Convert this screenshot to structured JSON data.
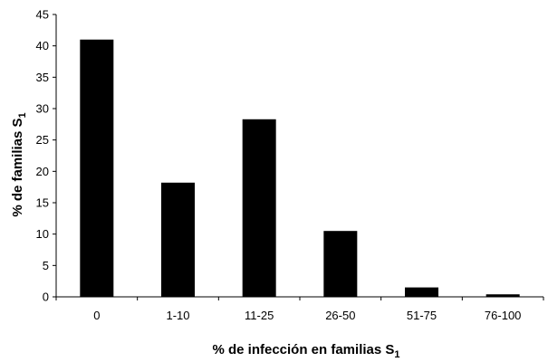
{
  "chart_data": {
    "type": "bar",
    "categories": [
      "0",
      "1-10",
      "11-25",
      "26-50",
      "51-75",
      "76-100"
    ],
    "values": [
      41,
      18.2,
      28.3,
      10.5,
      1.5,
      0.4
    ],
    "xlabel": "% de infección en familias S",
    "xlabel_subscript": "1",
    "ylabel": "% de familias S",
    "ylabel_subscript": "1",
    "ylim": [
      0,
      45
    ],
    "yticks": [
      0,
      5,
      10,
      15,
      20,
      25,
      30,
      35,
      40,
      45
    ],
    "grid": false,
    "bar_color": "#000000"
  }
}
